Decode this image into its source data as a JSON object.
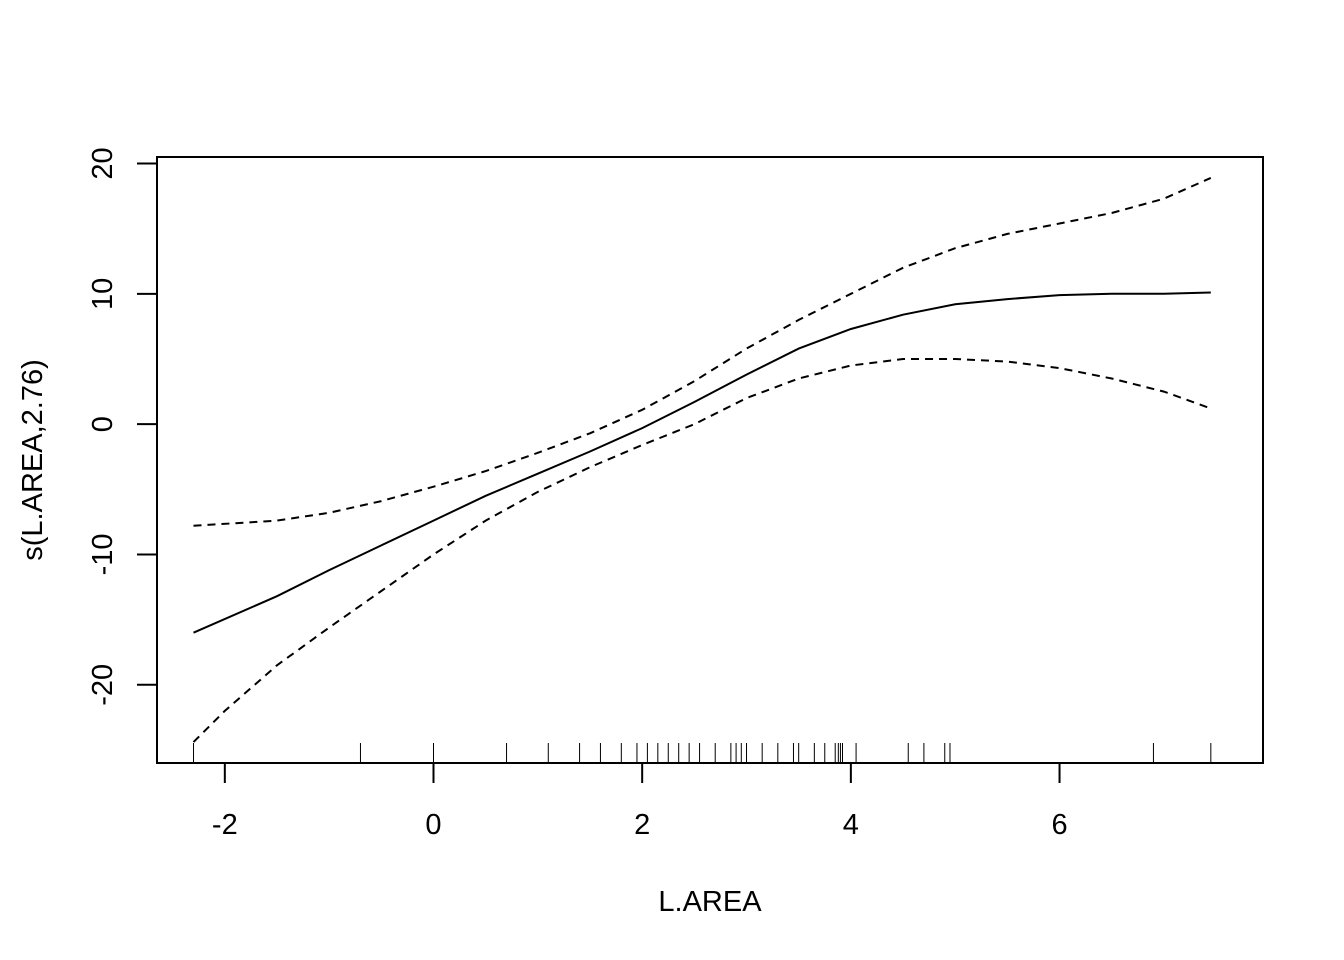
{
  "chart_data": {
    "type": "line",
    "title": "",
    "xlabel": "L.AREA",
    "ylabel": "s(L.AREA,2.76)",
    "xlim": [
      -2.65,
      7.95
    ],
    "ylim": [
      -26.0,
      20.5
    ],
    "x_ticks": [
      -2,
      0,
      2,
      4,
      6
    ],
    "y_ticks": [
      -20,
      -10,
      0,
      10,
      20
    ],
    "grid": false,
    "series": [
      {
        "style": "solid",
        "x": [
          -2.3,
          -1.5,
          -1.0,
          -0.5,
          0.0,
          0.5,
          1.0,
          1.5,
          2.0,
          2.5,
          3.0,
          3.5,
          4.0,
          4.5,
          5.0,
          5.5,
          6.0,
          6.5,
          7.0,
          7.45
        ],
        "y": [
          -16.0,
          -13.2,
          -11.2,
          -9.3,
          -7.4,
          -5.5,
          -3.8,
          -2.1,
          -0.3,
          1.7,
          3.8,
          5.8,
          7.3,
          8.4,
          9.2,
          9.6,
          9.9,
          10.0,
          10.0,
          10.1
        ]
      },
      {
        "style": "dashed",
        "x": [
          -2.3,
          -1.5,
          -1.0,
          -0.5,
          0.0,
          0.5,
          1.0,
          1.5,
          2.0,
          2.5,
          3.0,
          3.5,
          4.0,
          4.5,
          5.0,
          5.5,
          6.0,
          6.5,
          7.0,
          7.45
        ],
        "y": [
          -7.8,
          -7.4,
          -6.8,
          -5.9,
          -4.8,
          -3.6,
          -2.2,
          -0.7,
          1.1,
          3.3,
          5.8,
          8.0,
          10.0,
          12.0,
          13.5,
          14.6,
          15.4,
          16.2,
          17.3,
          18.9
        ]
      },
      {
        "style": "dashed",
        "x": [
          -2.3,
          -2.0,
          -1.5,
          -1.0,
          -0.5,
          0.0,
          0.5,
          1.0,
          1.5,
          2.0,
          2.5,
          3.0,
          3.5,
          4.0,
          4.5,
          5.0,
          5.5,
          6.0,
          6.5,
          7.0,
          7.45
        ],
        "y": [
          -24.4,
          -22.0,
          -18.5,
          -15.6,
          -12.8,
          -10.0,
          -7.4,
          -5.2,
          -3.3,
          -1.6,
          0.0,
          2.0,
          3.5,
          4.5,
          5.0,
          5.0,
          4.8,
          4.3,
          3.5,
          2.5,
          1.2
        ]
      }
    ],
    "rug": [
      -2.3,
      -0.7,
      0.0,
      0.7,
      1.1,
      1.4,
      1.6,
      1.8,
      1.95,
      2.05,
      2.15,
      2.25,
      2.35,
      2.45,
      2.55,
      2.7,
      2.85,
      2.9,
      2.95,
      3.0,
      3.15,
      3.3,
      3.45,
      3.5,
      3.65,
      3.75,
      3.85,
      3.88,
      3.9,
      3.92,
      4.05,
      4.55,
      4.7,
      4.9,
      4.95,
      6.9,
      7.45
    ]
  }
}
